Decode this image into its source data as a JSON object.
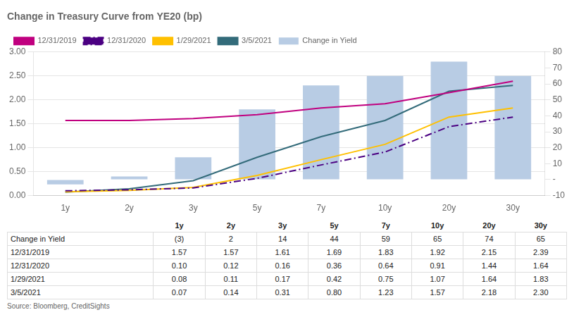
{
  "chart_data": {
    "type": "bar",
    "title": "Change in Treasury Curve from YE20 (bp)",
    "categories": [
      "1y",
      "2y",
      "3y",
      "5y",
      "7y",
      "10y",
      "20y",
      "30y"
    ],
    "series": [
      {
        "name": "Change in Yield",
        "type": "bar",
        "axis": "y2",
        "color": "#b8cce4",
        "values": [
          -3,
          2,
          14,
          44,
          59,
          65,
          74,
          65
        ]
      },
      {
        "name": "12/31/2019",
        "type": "line",
        "color": "#c0007f",
        "line_style": "solid",
        "values": [
          1.57,
          1.57,
          1.61,
          1.69,
          1.83,
          1.92,
          2.15,
          2.39
        ]
      },
      {
        "name": "12/31/2020",
        "type": "line",
        "color": "#4b0082",
        "line_style": "dashdot",
        "values": [
          0.1,
          0.12,
          0.16,
          0.36,
          0.64,
          0.91,
          1.44,
          1.64
        ]
      },
      {
        "name": "1/29/2021",
        "type": "line",
        "color": "#ffc000",
        "line_style": "solid",
        "values": [
          0.08,
          0.11,
          0.17,
          0.42,
          0.75,
          1.07,
          1.64,
          1.83
        ]
      },
      {
        "name": "3/5/2021",
        "type": "line",
        "color": "#336b7a",
        "line_style": "solid",
        "values": [
          0.07,
          0.14,
          0.31,
          0.8,
          1.23,
          1.57,
          2.18,
          2.3
        ]
      }
    ],
    "ylim": [
      0.0,
      3.0
    ],
    "yticks": [
      {
        "value": 0.0,
        "label": "0.00"
      },
      {
        "value": 0.5,
        "label": "0.50"
      },
      {
        "value": 1.0,
        "label": "1.00"
      },
      {
        "value": 1.5,
        "label": "1.50"
      },
      {
        "value": 2.0,
        "label": "2.00"
      },
      {
        "value": 2.5,
        "label": "2.50"
      },
      {
        "value": 3.0,
        "label": "3.00"
      }
    ],
    "y2lim": [
      -10,
      80
    ],
    "y2ticks": [
      -10,
      {
        "value": 0,
        "label": "-"
      },
      10,
      20,
      30,
      40,
      50,
      60,
      70,
      80
    ],
    "grid": true,
    "legend": "upper left",
    "table": {
      "rows": [
        [
          "Change in Yield",
          "(3)",
          "2",
          "14",
          "44",
          "59",
          "65",
          "74",
          "65"
        ],
        [
          "12/31/2019",
          "1.57",
          "1.57",
          "1.61",
          "1.69",
          "1.83",
          "1.92",
          "2.15",
          "2.39"
        ],
        [
          "12/31/2020",
          "0.10",
          "0.12",
          "0.16",
          "0.36",
          "0.64",
          "0.91",
          "1.44",
          "1.64"
        ],
        [
          "1/29/2021",
          "0.08",
          "0.11",
          "0.17",
          "0.42",
          "0.75",
          "1.07",
          "1.64",
          "1.83"
        ],
        [
          "3/5/2021",
          "0.07",
          "0.14",
          "0.31",
          "0.80",
          "1.23",
          "1.57",
          "2.18",
          "2.30"
        ]
      ]
    },
    "source": "Source: Bloomberg, CreditSights"
  }
}
